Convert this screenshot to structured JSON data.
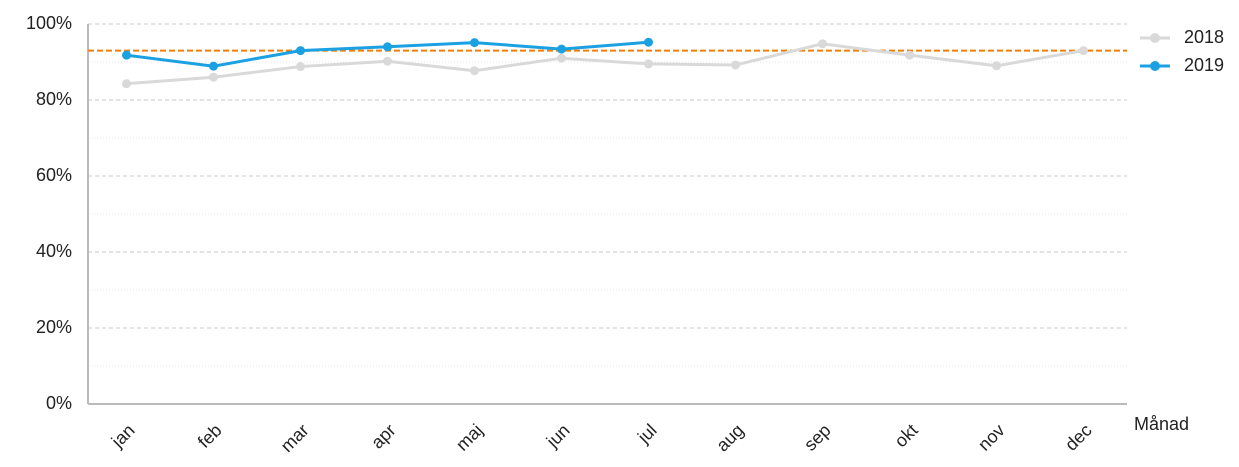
{
  "chart_data": {
    "type": "line",
    "x_label": "Månad",
    "categories": [
      "jan",
      "feb",
      "mar",
      "apr",
      "maj",
      "jun",
      "jul",
      "aug",
      "sep",
      "okt",
      "nov",
      "dec"
    ],
    "series": [
      {
        "name": "2018",
        "color": "#d9d9d9",
        "values": [
          84.3,
          86,
          88.8,
          90.2,
          87.7,
          91,
          89.5,
          89.2,
          94.8,
          91.8,
          89,
          93
        ]
      },
      {
        "name": "2019",
        "color": "#1ba1e2",
        "values": [
          91.8,
          88.9,
          93,
          94,
          95.1,
          93.4,
          95.2,
          null,
          null,
          null,
          null,
          null
        ]
      }
    ],
    "ylim": [
      0,
      100
    ],
    "yticks": [
      {
        "value": 0,
        "label": "0%"
      },
      {
        "value": 20,
        "label": "20%"
      },
      {
        "value": 40,
        "label": "40%"
      },
      {
        "value": 60,
        "label": "60%"
      },
      {
        "value": 80,
        "label": "80%"
      },
      {
        "value": 100,
        "label": "100%"
      }
    ],
    "minor_yticks": [
      10,
      30,
      50,
      70,
      90
    ],
    "reference_line": {
      "value": 93,
      "color": "#f07f09"
    },
    "grid": true,
    "legend": "top-right"
  }
}
